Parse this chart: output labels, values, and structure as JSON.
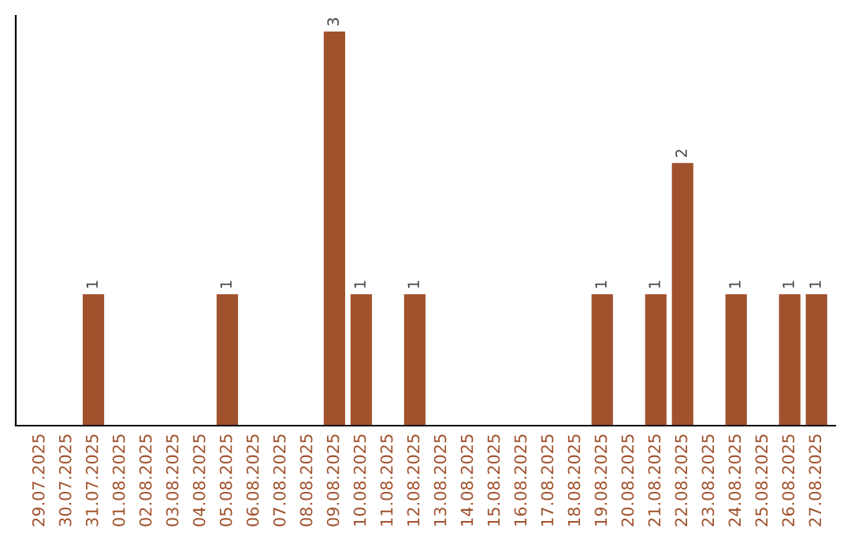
{
  "chart_data": {
    "type": "bar",
    "categories": [
      "29.07.2025",
      "30.07.2025",
      "31.07.2025",
      "01.08.2025",
      "02.08.2025",
      "03.08.2025",
      "04.08.2025",
      "05.08.2025",
      "06.08.2025",
      "07.08.2025",
      "08.08.2025",
      "09.08.2025",
      "10.08.2025",
      "11.08.2025",
      "12.08.2025",
      "13.08.2025",
      "14.08.2025",
      "15.08.2025",
      "16.08.2025",
      "17.08.2025",
      "18.08.2025",
      "19.08.2025",
      "20.08.2025",
      "21.08.2025",
      "22.08.2025",
      "23.08.2025",
      "24.08.2025",
      "25.08.2025",
      "26.08.2025",
      "27.08.2025"
    ],
    "values": [
      0,
      0,
      1,
      0,
      0,
      0,
      0,
      1,
      0,
      0,
      0,
      3,
      1,
      0,
      1,
      0,
      0,
      0,
      0,
      0,
      0,
      1,
      0,
      1,
      2,
      0,
      1,
      0,
      1,
      1
    ],
    "value_labels": [
      null,
      null,
      "1",
      null,
      null,
      null,
      null,
      "1",
      null,
      null,
      null,
      "3",
      "1",
      null,
      "1",
      null,
      null,
      null,
      null,
      null,
      null,
      "1",
      null,
      "1",
      "2",
      null,
      "1",
      null,
      "1",
      "1"
    ],
    "color": "#a0522d",
    "tick_labels": "x",
    "grid": false,
    "legend": false
  }
}
